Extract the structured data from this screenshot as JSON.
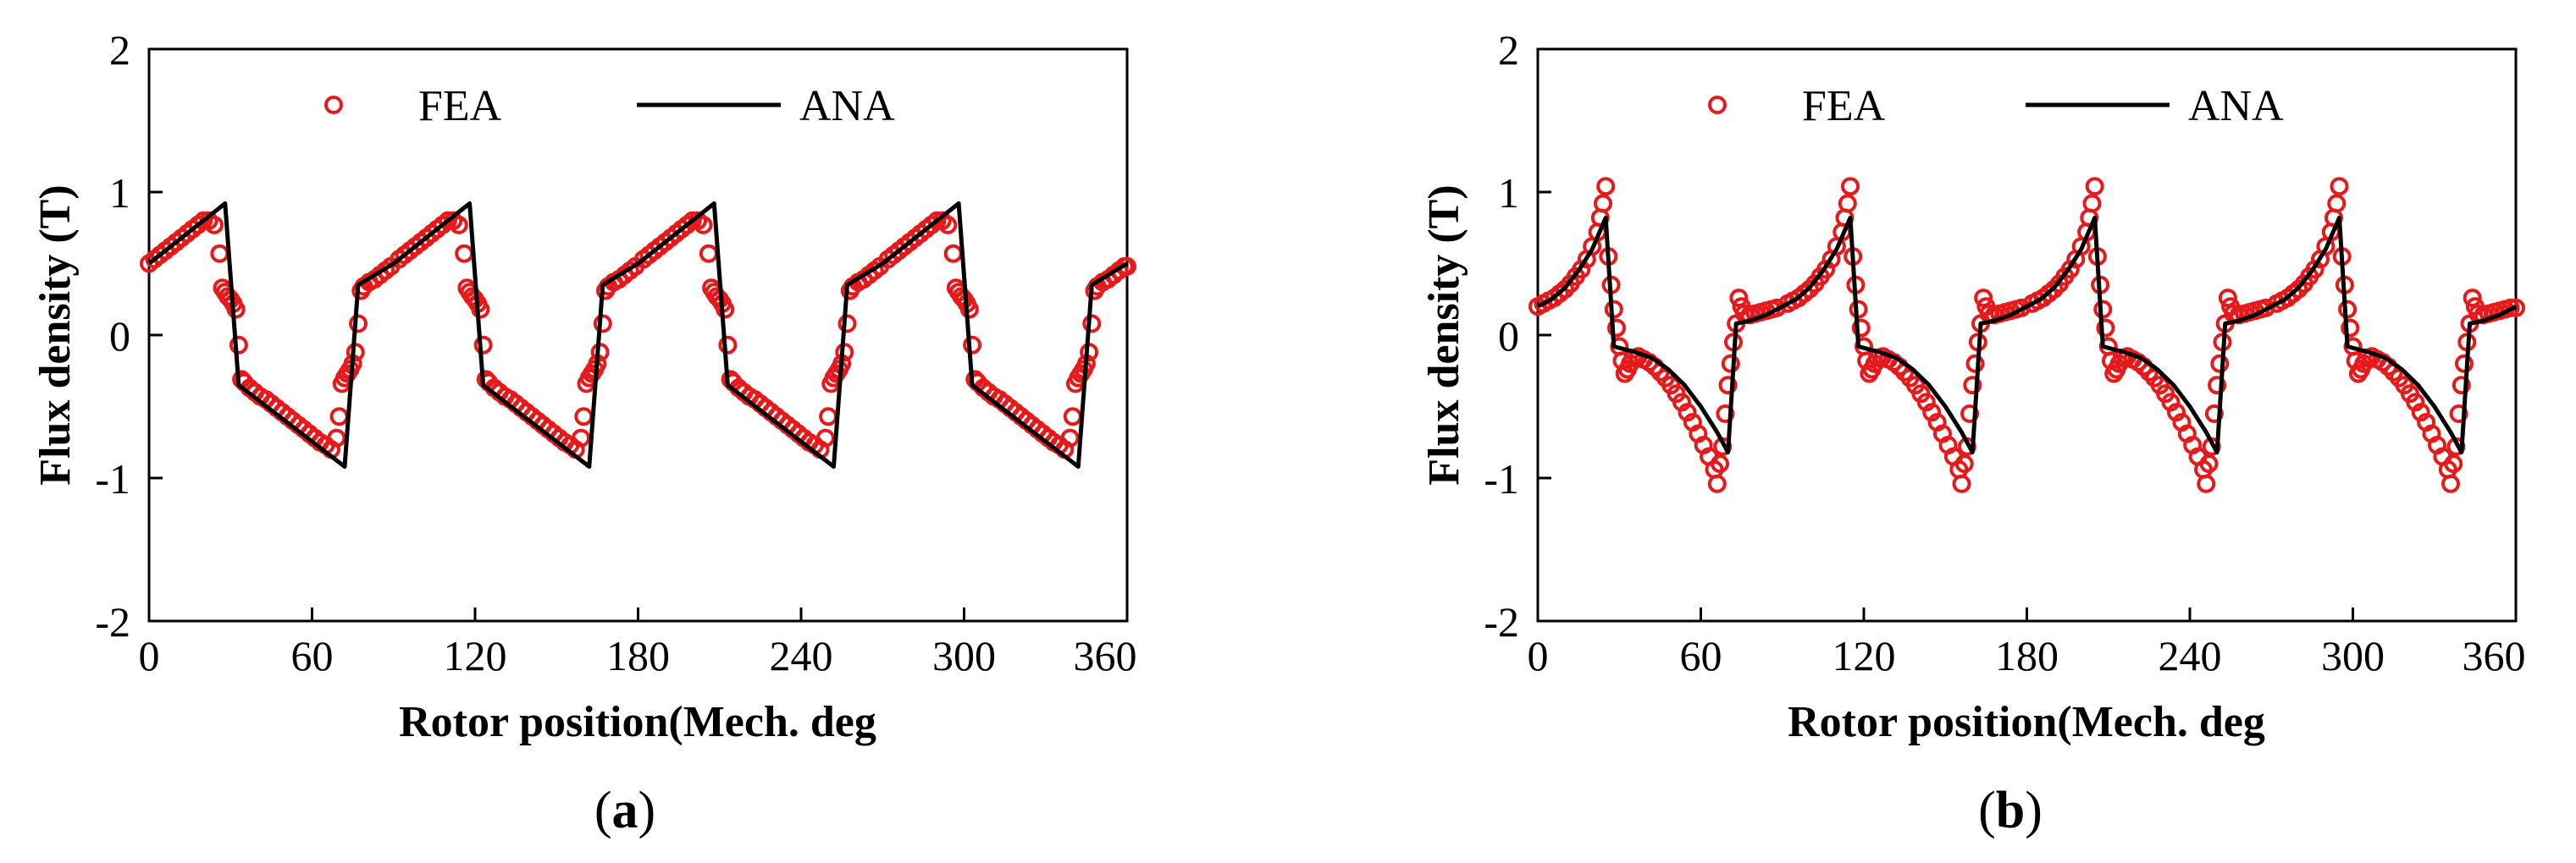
{
  "chart_data": [
    {
      "type": "line",
      "panel_label": "a",
      "title": "",
      "xlabel": "Rotor position(Mech. deg",
      "ylabel": "Flux density (T)",
      "xlim": [
        0,
        360
      ],
      "ylim": [
        -2,
        2
      ],
      "x_ticks": [
        0,
        60,
        120,
        180,
        240,
        300,
        360
      ],
      "y_ticks": [
        -2,
        -1,
        0,
        1,
        2
      ],
      "x_tick_labels": [
        "0",
        "60",
        "120",
        "180",
        "240",
        "300",
        "360"
      ],
      "y_tick_labels": [
        "-2",
        "-1",
        "0",
        "1",
        "2"
      ],
      "grid": false,
      "legend_position": "top",
      "period_deg": 90,
      "series": [
        {
          "name": "ANA",
          "style": "line",
          "color": "#000000",
          "period_pattern": [
            [
              0,
              0.5
            ],
            [
              28,
              0.92
            ],
            [
              33,
              -0.35
            ],
            [
              72,
              -0.92
            ],
            [
              77,
              0.35
            ],
            [
              90,
              0.5
            ]
          ]
        },
        {
          "name": "FEA",
          "style": "circle-markers",
          "color": "#e8191a",
          "period_pattern": [
            [
              0,
              0.5
            ],
            [
              2,
              0.53
            ],
            [
              4,
              0.56
            ],
            [
              6,
              0.59
            ],
            [
              8,
              0.62
            ],
            [
              10,
              0.65
            ],
            [
              12,
              0.68
            ],
            [
              14,
              0.71
            ],
            [
              16,
              0.74
            ],
            [
              18,
              0.77
            ],
            [
              20,
              0.8
            ],
            [
              22,
              0.8
            ],
            [
              24,
              0.77
            ],
            [
              26,
              0.57
            ],
            [
              27,
              0.33
            ],
            [
              28,
              0.3
            ],
            [
              29,
              0.27
            ],
            [
              30,
              0.25
            ],
            [
              31,
              0.22
            ],
            [
              32,
              0.18
            ],
            [
              33,
              -0.07
            ],
            [
              34,
              -0.31
            ],
            [
              35,
              -0.33
            ],
            [
              37,
              -0.37
            ],
            [
              39,
              -0.4
            ],
            [
              41,
              -0.43
            ],
            [
              43,
              -0.45
            ],
            [
              45,
              -0.48
            ],
            [
              47,
              -0.51
            ],
            [
              49,
              -0.54
            ],
            [
              51,
              -0.57
            ],
            [
              53,
              -0.6
            ],
            [
              55,
              -0.63
            ],
            [
              57,
              -0.66
            ],
            [
              59,
              -0.69
            ],
            [
              61,
              -0.72
            ],
            [
              63,
              -0.75
            ],
            [
              65,
              -0.77
            ],
            [
              67,
              -0.8
            ],
            [
              69,
              -0.72
            ],
            [
              70,
              -0.57
            ],
            [
              71,
              -0.34
            ],
            [
              72,
              -0.3
            ],
            [
              73,
              -0.27
            ],
            [
              74,
              -0.24
            ],
            [
              75,
              -0.2
            ],
            [
              76,
              -0.12
            ],
            [
              77,
              0.08
            ],
            [
              78,
              0.31
            ],
            [
              79,
              0.34
            ],
            [
              81,
              0.37
            ],
            [
              83,
              0.39
            ],
            [
              85,
              0.42
            ],
            [
              87,
              0.45
            ],
            [
              89,
              0.48
            ]
          ]
        }
      ]
    },
    {
      "type": "line",
      "panel_label": "b",
      "title": "",
      "xlabel": "Rotor position(Mech. deg",
      "ylabel": "Flux density (T)",
      "xlim": [
        0,
        360
      ],
      "ylim": [
        -2,
        2
      ],
      "x_ticks": [
        0,
        60,
        120,
        180,
        240,
        300,
        360
      ],
      "y_ticks": [
        -2,
        -1,
        0,
        1,
        2
      ],
      "x_tick_labels": [
        "0",
        "60",
        "120",
        "180",
        "240",
        "300",
        "360"
      ],
      "y_tick_labels": [
        "-2",
        "-1",
        "0",
        "1",
        "2"
      ],
      "grid": false,
      "legend_position": "top",
      "period_deg": 90,
      "series": [
        {
          "name": "ANA",
          "style": "line",
          "color": "#000000",
          "period_pattern": [
            [
              0,
              0.2
            ],
            [
              5,
              0.25
            ],
            [
              10,
              0.33
            ],
            [
              15,
              0.45
            ],
            [
              20,
              0.6
            ],
            [
              25,
              0.82
            ],
            [
              28,
              -0.08
            ],
            [
              32,
              -0.1
            ],
            [
              36,
              -0.12
            ],
            [
              42,
              -0.16
            ],
            [
              48,
              -0.24
            ],
            [
              54,
              -0.35
            ],
            [
              60,
              -0.5
            ],
            [
              66,
              -0.68
            ],
            [
              70,
              -0.82
            ],
            [
              73,
              0.08
            ],
            [
              78,
              0.1
            ],
            [
              84,
              0.14
            ],
            [
              90,
              0.2
            ]
          ]
        },
        {
          "name": "FEA",
          "style": "circle-markers",
          "color": "#e8191a",
          "period_pattern": [
            [
              0,
              0.2
            ],
            [
              2,
              0.22
            ],
            [
              4,
              0.24
            ],
            [
              6,
              0.26
            ],
            [
              8,
              0.29
            ],
            [
              10,
              0.32
            ],
            [
              12,
              0.36
            ],
            [
              14,
              0.41
            ],
            [
              16,
              0.46
            ],
            [
              18,
              0.53
            ],
            [
              20,
              0.62
            ],
            [
              22,
              0.72
            ],
            [
              23,
              0.82
            ],
            [
              24,
              0.92
            ],
            [
              25,
              1.04
            ],
            [
              26,
              0.55
            ],
            [
              27,
              0.35
            ],
            [
              28,
              0.18
            ],
            [
              29,
              0.05
            ],
            [
              30,
              -0.08
            ],
            [
              31,
              -0.18
            ],
            [
              32,
              -0.27
            ],
            [
              33,
              -0.24
            ],
            [
              34,
              -0.2
            ],
            [
              35,
              -0.16
            ],
            [
              37,
              -0.15
            ],
            [
              39,
              -0.17
            ],
            [
              41,
              -0.19
            ],
            [
              43,
              -0.22
            ],
            [
              45,
              -0.26
            ],
            [
              47,
              -0.3
            ],
            [
              49,
              -0.35
            ],
            [
              51,
              -0.41
            ],
            [
              53,
              -0.47
            ],
            [
              55,
              -0.54
            ],
            [
              57,
              -0.61
            ],
            [
              59,
              -0.69
            ],
            [
              61,
              -0.77
            ],
            [
              63,
              -0.85
            ],
            [
              65,
              -0.94
            ],
            [
              66,
              -1.04
            ],
            [
              67,
              -0.9
            ],
            [
              68,
              -0.78
            ],
            [
              69,
              -0.55
            ],
            [
              70,
              -0.35
            ],
            [
              71,
              -0.2
            ],
            [
              72,
              -0.05
            ],
            [
              73,
              0.08
            ],
            [
              74,
              0.26
            ],
            [
              75,
              0.2
            ],
            [
              76,
              0.15
            ],
            [
              78,
              0.14
            ],
            [
              80,
              0.15
            ],
            [
              82,
              0.16
            ],
            [
              84,
              0.17
            ],
            [
              86,
              0.18
            ],
            [
              88,
              0.19
            ]
          ]
        }
      ]
    }
  ]
}
